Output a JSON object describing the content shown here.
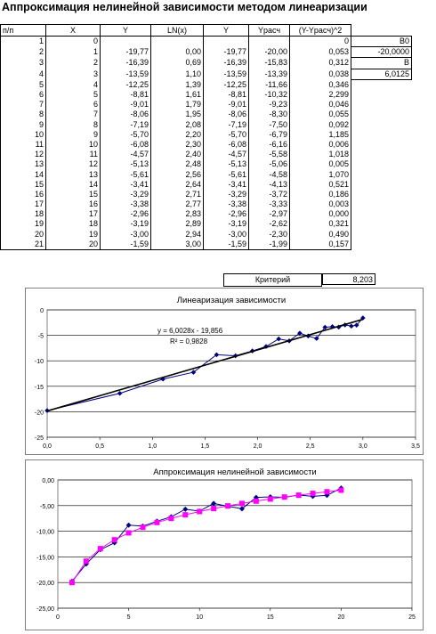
{
  "title": "Аппроксимация нелинейной зависимости методом линеаризации",
  "table": {
    "headers": [
      "п/п",
      "X",
      "Y",
      "LN(x)",
      "Y",
      "Yрасч",
      "(Y-Yрасч)^2"
    ],
    "rows": [
      [
        "1",
        "0",
        "",
        "",
        "",
        "",
        "0"
      ],
      [
        "2",
        "1",
        "-19,77",
        "0,00",
        "-19,77",
        "-20,00",
        "0,053"
      ],
      [
        "3",
        "2",
        "-16,39",
        "0,69",
        "-16,39",
        "-15,83",
        "0,312"
      ],
      [
        "4",
        "3",
        "-13,59",
        "1,10",
        "-13,59",
        "-13,39",
        "0,038"
      ],
      [
        "5",
        "4",
        "-12,25",
        "1,39",
        "-12,25",
        "-11,66",
        "0,346"
      ],
      [
        "6",
        "5",
        "-8,81",
        "1,61",
        "-8,81",
        "-10,32",
        "2,299"
      ],
      [
        "7",
        "6",
        "-9,01",
        "1,79",
        "-9,01",
        "-9,23",
        "0,046"
      ],
      [
        "8",
        "7",
        "-8,06",
        "1,95",
        "-8,06",
        "-8,30",
        "0,055"
      ],
      [
        "9",
        "8",
        "-7,19",
        "2,08",
        "-7,19",
        "-7,50",
        "0,092"
      ],
      [
        "10",
        "9",
        "-5,70",
        "2,20",
        "-5,70",
        "-6,79",
        "1,185"
      ],
      [
        "11",
        "10",
        "-6,08",
        "2,30",
        "-6,08",
        "-6,16",
        "0,006"
      ],
      [
        "12",
        "11",
        "-4,57",
        "2,40",
        "-4,57",
        "-5,58",
        "1,018"
      ],
      [
        "13",
        "12",
        "-5,13",
        "2,48",
        "-5,13",
        "-5,06",
        "0,005"
      ],
      [
        "14",
        "13",
        "-5,61",
        "2,56",
        "-5,61",
        "-4,58",
        "1,070"
      ],
      [
        "15",
        "14",
        "-3,41",
        "2,64",
        "-3,41",
        "-4,13",
        "0,521"
      ],
      [
        "16",
        "15",
        "-3,29",
        "2,71",
        "-3,29",
        "-3,72",
        "0,186"
      ],
      [
        "17",
        "16",
        "-3,38",
        "2,77",
        "-3,38",
        "-3,33",
        "0,003"
      ],
      [
        "18",
        "17",
        "-2,96",
        "2,83",
        "-2,96",
        "-2,97",
        "0,000"
      ],
      [
        "19",
        "18",
        "-3,19",
        "2,89",
        "-3,19",
        "-2,62",
        "0,321"
      ],
      [
        "20",
        "19",
        "-3,00",
        "2,94",
        "-3,00",
        "-2,30",
        "0,490"
      ],
      [
        "21",
        "20",
        "-1,59",
        "3,00",
        "-1,59",
        "-1,99",
        "0,157"
      ]
    ],
    "aux_cells": [
      {
        "row": 0,
        "label": "B0"
      },
      {
        "row": 1,
        "label": "-20,0000"
      },
      {
        "row": 2,
        "label": "B"
      },
      {
        "row": 3,
        "label": "6,0125"
      }
    ],
    "criterion_label": "Критерий",
    "criterion_value": "8,203"
  },
  "chart_data": [
    {
      "type": "scatter",
      "title": "Линеаризация зависимости",
      "equation": "y = 6,0028x - 19,856",
      "r2": "R² = 0,9828",
      "xlim": [
        0,
        3.5
      ],
      "ylim": [
        -25,
        0
      ],
      "xticks": [
        "0,0",
        "0,5",
        "1,0",
        "1,5",
        "2,0",
        "2,5",
        "3,0",
        "3,5"
      ],
      "yticks": [
        "0",
        "-5",
        "-10",
        "-15",
        "-20",
        "-25"
      ],
      "series": [
        {
          "x": [
            0.0,
            0.69,
            1.1,
            1.39,
            1.61,
            1.79,
            1.95,
            2.08,
            2.2,
            2.3,
            2.4,
            2.48,
            2.56,
            2.64,
            2.71,
            2.77,
            2.83,
            2.89,
            2.94,
            3.0
          ],
          "values": [
            -19.77,
            -16.39,
            -13.59,
            -12.25,
            -8.81,
            -9.01,
            -8.06,
            -7.19,
            -5.7,
            -6.08,
            -4.57,
            -5.13,
            -5.61,
            -3.41,
            -3.29,
            -3.38,
            -2.96,
            -3.19,
            -3.0,
            -1.59
          ],
          "color": "#000080"
        }
      ],
      "trendline": {
        "slope": 6.0028,
        "intercept": -19.856,
        "x": [
          0,
          3.0
        ],
        "color": "#000000"
      }
    },
    {
      "type": "line",
      "title": "Аппроксимация нелинейной зависимости",
      "xlim": [
        0,
        25
      ],
      "ylim": [
        -25,
        0
      ],
      "xticks": [
        "0",
        "5",
        "10",
        "15",
        "20",
        "25"
      ],
      "yticks": [
        "0,00",
        "-5,00",
        "-10,00",
        "-15,00",
        "-20,00",
        "-25,00"
      ],
      "x": [
        1,
        2,
        3,
        4,
        5,
        6,
        7,
        8,
        9,
        10,
        11,
        12,
        13,
        14,
        15,
        16,
        17,
        18,
        19,
        20
      ],
      "series": [
        {
          "values": [
            -19.77,
            -16.39,
            -13.59,
            -12.25,
            -8.81,
            -9.01,
            -8.06,
            -7.19,
            -5.7,
            -6.08,
            -4.57,
            -5.13,
            -5.61,
            -3.41,
            -3.29,
            -3.38,
            -2.96,
            -3.19,
            -3.0,
            -1.59
          ],
          "color": "#000080",
          "marker": "diamond"
        },
        {
          "values": [
            -20.0,
            -15.83,
            -13.39,
            -11.66,
            -10.32,
            -9.23,
            -8.3,
            -7.5,
            -6.79,
            -6.16,
            -5.58,
            -5.06,
            -4.58,
            -4.13,
            -3.72,
            -3.33,
            -2.97,
            -2.62,
            -2.3,
            -1.99
          ],
          "color": "#ff00ff",
          "marker": "square"
        }
      ]
    }
  ]
}
